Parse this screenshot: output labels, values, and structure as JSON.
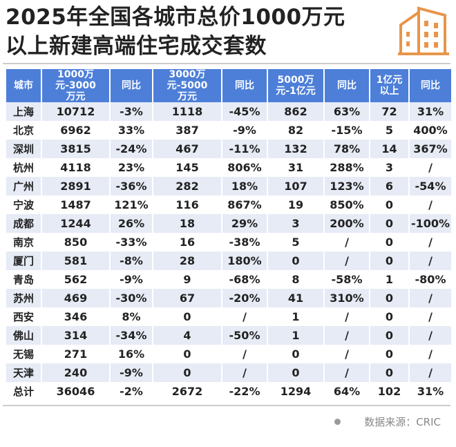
{
  "title_line1": "2025年全国各城市总价1000万元",
  "title_line2": "以上新建高端住宅成交套数",
  "footer": "数据来源：CRIC",
  "chart_data": {
    "type": "table",
    "title": "2025年全国各城市总价1000万元以上新建高端住宅成交套数",
    "headers": [
      "城市",
      "1000万元-3000万元",
      "同比",
      "3000万元-5000万元",
      "同比",
      "5000万元-1亿元",
      "同比",
      "1亿元以上",
      "同比"
    ],
    "rows": [
      [
        "上海",
        "10712",
        "-3%",
        "1118",
        "-45%",
        "862",
        "63%",
        "72",
        "31%"
      ],
      [
        "北京",
        "6962",
        "33%",
        "387",
        "-9%",
        "82",
        "-15%",
        "5",
        "400%"
      ],
      [
        "深圳",
        "3815",
        "-24%",
        "467",
        "-11%",
        "132",
        "78%",
        "14",
        "367%"
      ],
      [
        "杭州",
        "4118",
        "23%",
        "145",
        "806%",
        "31",
        "288%",
        "3",
        "/"
      ],
      [
        "广州",
        "2891",
        "-36%",
        "282",
        "18%",
        "107",
        "123%",
        "6",
        "-54%"
      ],
      [
        "宁波",
        "1487",
        "121%",
        "116",
        "867%",
        "19",
        "850%",
        "0",
        "/"
      ],
      [
        "成都",
        "1244",
        "26%",
        "18",
        "29%",
        "3",
        "200%",
        "0",
        "-100%"
      ],
      [
        "南京",
        "850",
        "-33%",
        "16",
        "-38%",
        "5",
        "/",
        "0",
        "/"
      ],
      [
        "厦门",
        "581",
        "-8%",
        "28",
        "180%",
        "0",
        "/",
        "0",
        "/"
      ],
      [
        "青岛",
        "562",
        "-9%",
        "9",
        "-68%",
        "8",
        "-58%",
        "1",
        "-80%"
      ],
      [
        "苏州",
        "469",
        "-30%",
        "67",
        "-20%",
        "41",
        "310%",
        "0",
        "/"
      ],
      [
        "西安",
        "346",
        "8%",
        "0",
        "/",
        "1",
        "/",
        "0",
        "/"
      ],
      [
        "佛山",
        "314",
        "-34%",
        "4",
        "-50%",
        "1",
        "/",
        "0",
        "/"
      ],
      [
        "无锡",
        "271",
        "16%",
        "0",
        "/",
        "0",
        "/",
        "0",
        "/"
      ],
      [
        "天津",
        "240",
        "-9%",
        "0",
        "/",
        "0",
        "/",
        "0",
        "/"
      ],
      [
        "总计",
        "36046",
        "-2%",
        "2672",
        "-22%",
        "1294",
        "64%",
        "102",
        "31%"
      ]
    ]
  },
  "colors": {
    "header_bg": "#4d7fd8",
    "row_shade": "#e6ebf5",
    "icon": "#e8954a"
  }
}
